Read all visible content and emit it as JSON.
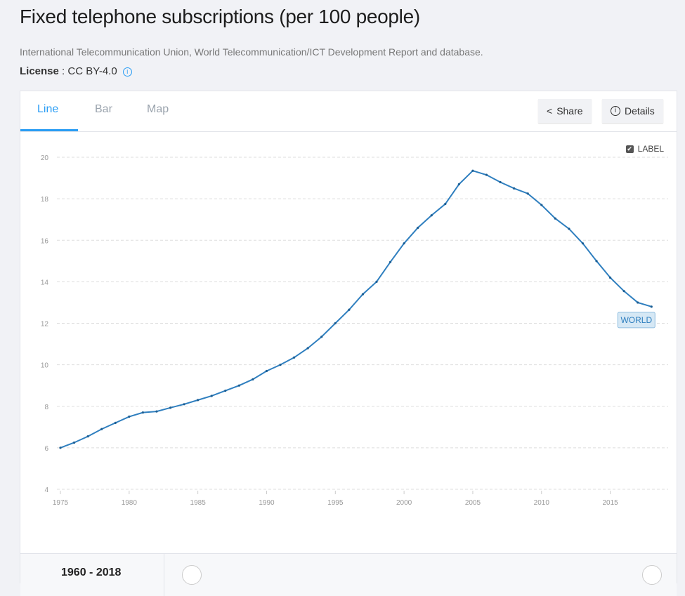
{
  "title": "Fixed telephone subscriptions (per 100 people)",
  "source": "International Telecommunication Union, World Telecommunication/ICT Development Report and database.",
  "license": {
    "label": "License",
    "value": " : CC BY-4.0"
  },
  "tabs": [
    {
      "label": "Line"
    },
    {
      "label": "Bar"
    },
    {
      "label": "Map"
    }
  ],
  "buttons": {
    "share": "Share",
    "details": "Details"
  },
  "label_toggle": "LABEL",
  "footer": {
    "range": "1960 - 2018"
  },
  "chart_data": {
    "type": "line",
    "title": "",
    "xlabel": "",
    "ylabel": "",
    "xlim": [
      1975,
      2018
    ],
    "ylim": [
      4,
      20
    ],
    "yticks": [
      4,
      6,
      8,
      10,
      12,
      14,
      16,
      18,
      20
    ],
    "xticks": [
      1975,
      1980,
      1985,
      1990,
      1995,
      2000,
      2005,
      2010,
      2015
    ],
    "grid": true,
    "color": "#2f7fbf",
    "series": [
      {
        "name": "WORLD",
        "x": [
          1975,
          1976,
          1977,
          1978,
          1979,
          1980,
          1981,
          1982,
          1983,
          1984,
          1985,
          1986,
          1987,
          1988,
          1989,
          1990,
          1991,
          1992,
          1993,
          1994,
          1995,
          1996,
          1997,
          1998,
          1999,
          2000,
          2001,
          2002,
          2003,
          2004,
          2005,
          2006,
          2007,
          2008,
          2009,
          2010,
          2011,
          2012,
          2013,
          2014,
          2015,
          2016,
          2017,
          2018
        ],
        "values": [
          6.0,
          6.25,
          6.55,
          6.9,
          7.2,
          7.5,
          7.7,
          7.75,
          7.93,
          8.1,
          8.3,
          8.5,
          8.75,
          9.0,
          9.3,
          9.7,
          10.0,
          10.35,
          10.8,
          11.35,
          12.0,
          12.65,
          13.4,
          14.0,
          14.95,
          15.85,
          16.6,
          17.2,
          17.75,
          18.7,
          19.35,
          19.15,
          18.8,
          18.5,
          18.25,
          17.7,
          17.05,
          16.55,
          15.85,
          15.0,
          14.2,
          13.55,
          13.0,
          12.8
        ]
      }
    ]
  }
}
